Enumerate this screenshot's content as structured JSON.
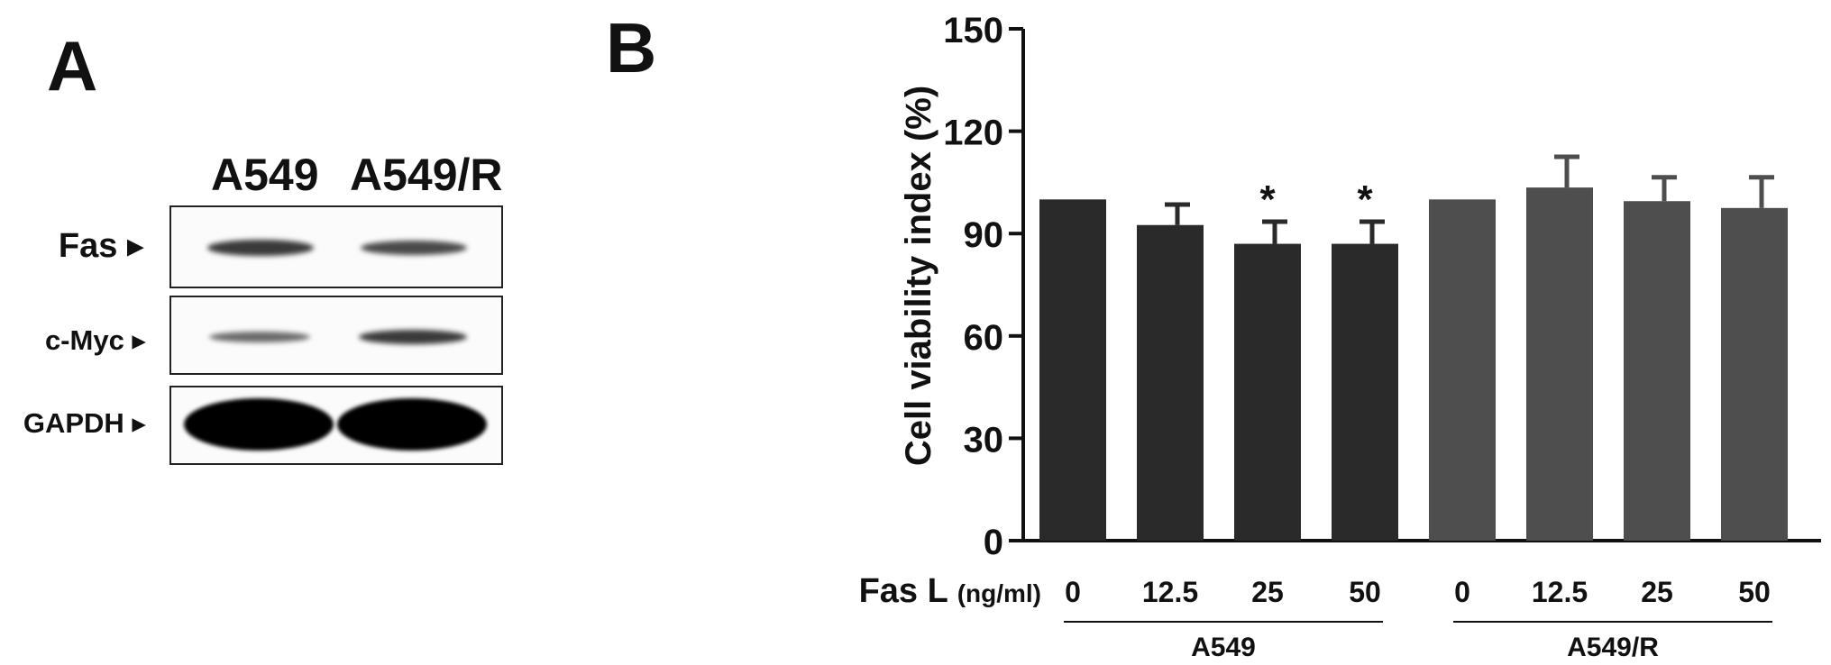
{
  "panel_a": {
    "letter": "A",
    "lanes": [
      "A549",
      "A549/R"
    ],
    "rows": [
      {
        "label": "Fas",
        "intensity": [
          0.85,
          0.75
        ]
      },
      {
        "label": "c-Myc",
        "intensity": [
          0.55,
          0.85
        ]
      },
      {
        "label": "GAPDH",
        "intensity": [
          1.0,
          1.0
        ]
      }
    ]
  },
  "panel_b": {
    "letter": "B",
    "x_prefix_label": "Fas L",
    "x_prefix_unit": "(ng/ml)",
    "group_labels": [
      "A549",
      "A549/R"
    ]
  },
  "chart_data": {
    "type": "bar",
    "title": "",
    "xlabel": "Fas L (ng/ml)",
    "ylabel": "Cell viability index (%)",
    "ylim": [
      0,
      150
    ],
    "yticks": [
      0,
      30,
      60,
      90,
      120,
      150
    ],
    "categories": [
      "0",
      "12.5",
      "25",
      "50",
      "0",
      "12.5",
      "25",
      "50"
    ],
    "groups": [
      {
        "name": "A549",
        "start": 0,
        "end": 3
      },
      {
        "name": "A549/R",
        "start": 4,
        "end": 7
      }
    ],
    "values": [
      100,
      92.5,
      87,
      87,
      100,
      103.5,
      99.5,
      97.5
    ],
    "errors": [
      0,
      6,
      6.5,
      6.5,
      0,
      9,
      7,
      9
    ],
    "significance": [
      "",
      "",
      "*",
      "*",
      "",
      "",
      "",
      ""
    ],
    "colors": [
      "#2a2a2a",
      "#2a2a2a",
      "#2a2a2a",
      "#2a2a2a",
      "#4e4e4e",
      "#4e4e4e",
      "#4e4e4e",
      "#4e4e4e"
    ],
    "grid": false,
    "legend": "none"
  }
}
